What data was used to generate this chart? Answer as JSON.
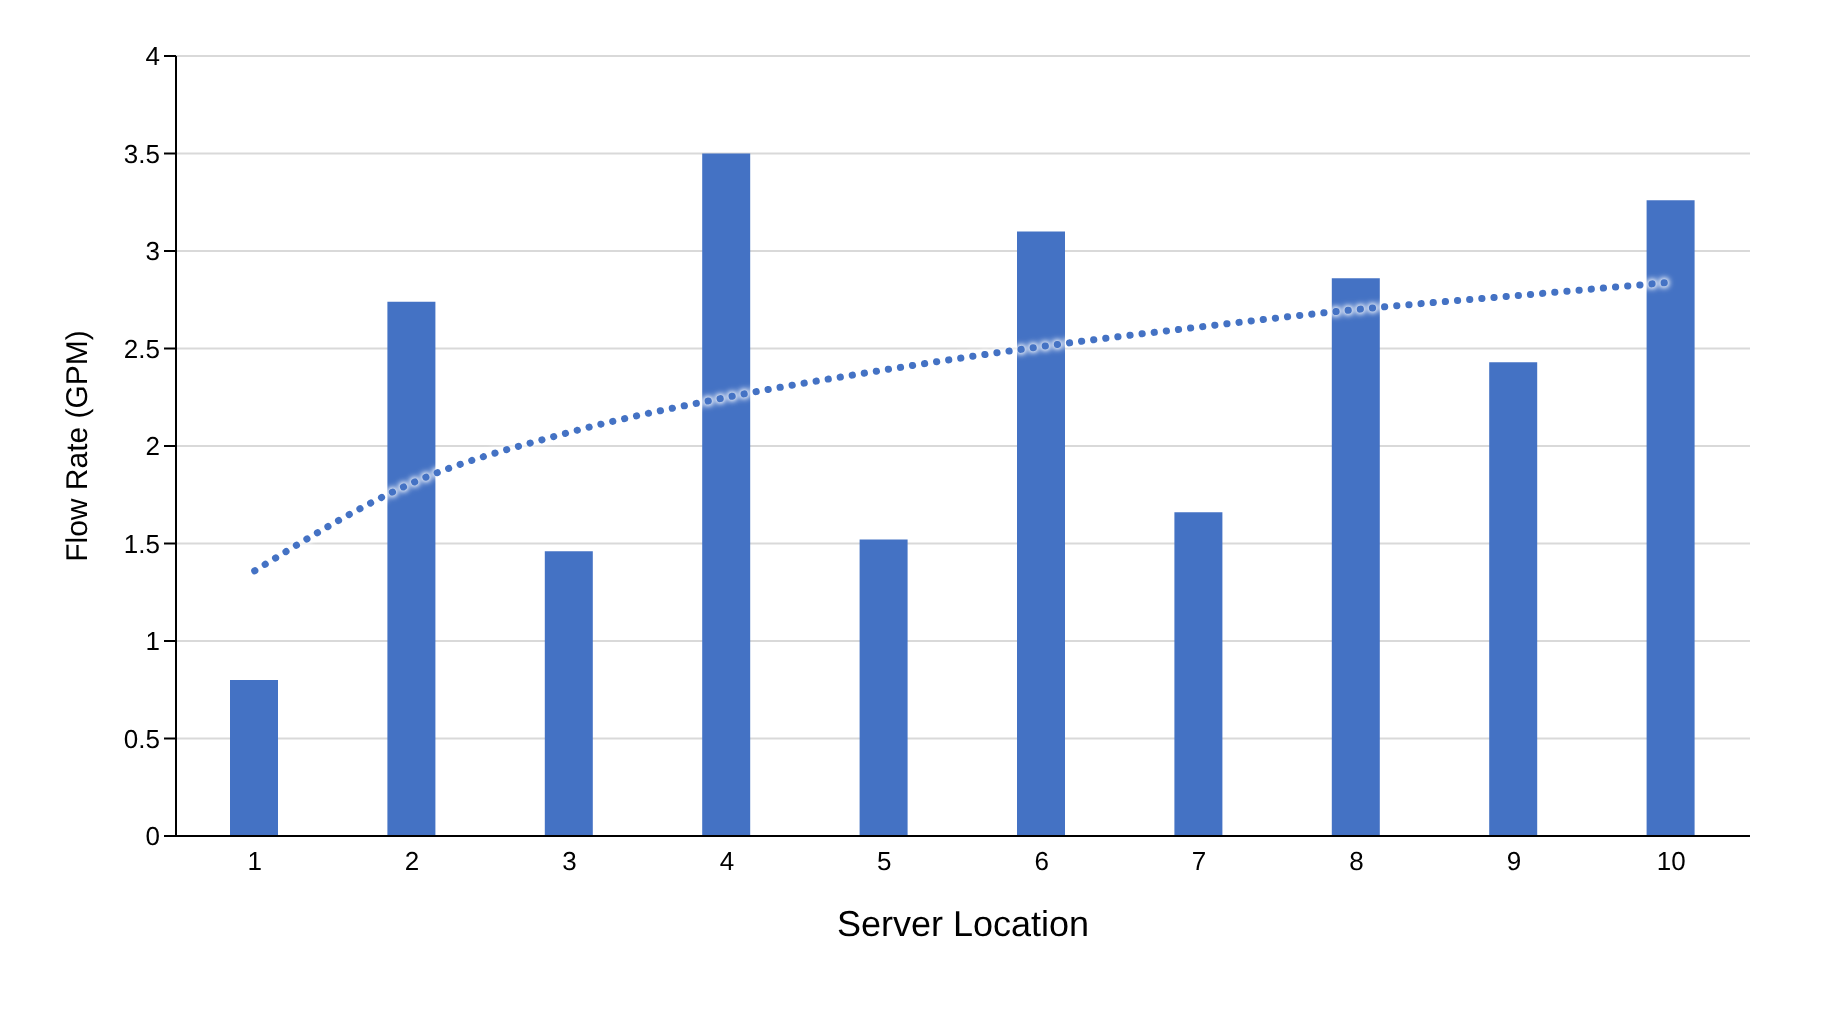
{
  "chart_data": {
    "type": "bar",
    "xlabel": "Server Location",
    "ylabel": "Flow Rate (GPM)",
    "categories": [
      "1",
      "2",
      "3",
      "4",
      "5",
      "6",
      "7",
      "8",
      "9",
      "10"
    ],
    "series": [
      {
        "color": "#4472c4",
        "values": [
          0.8,
          2.74,
          1.46,
          3.5,
          1.52,
          3.1,
          1.66,
          2.86,
          2.43,
          3.26
        ]
      },
      {
        "type": "line",
        "color": "#4472c4",
        "line_style": "dotted",
        "marker": "none",
        "values": [
          1.36,
          1.81,
          2.07,
          2.25,
          2.39,
          2.51,
          2.61,
          2.7,
          2.77,
          2.84
        ]
      }
    ],
    "ylim": [
      0,
      4
    ],
    "yticks": [
      0,
      0.5,
      1,
      1.5,
      2,
      2.5,
      3,
      3.5,
      4
    ],
    "grid": "y",
    "legend": false
  }
}
